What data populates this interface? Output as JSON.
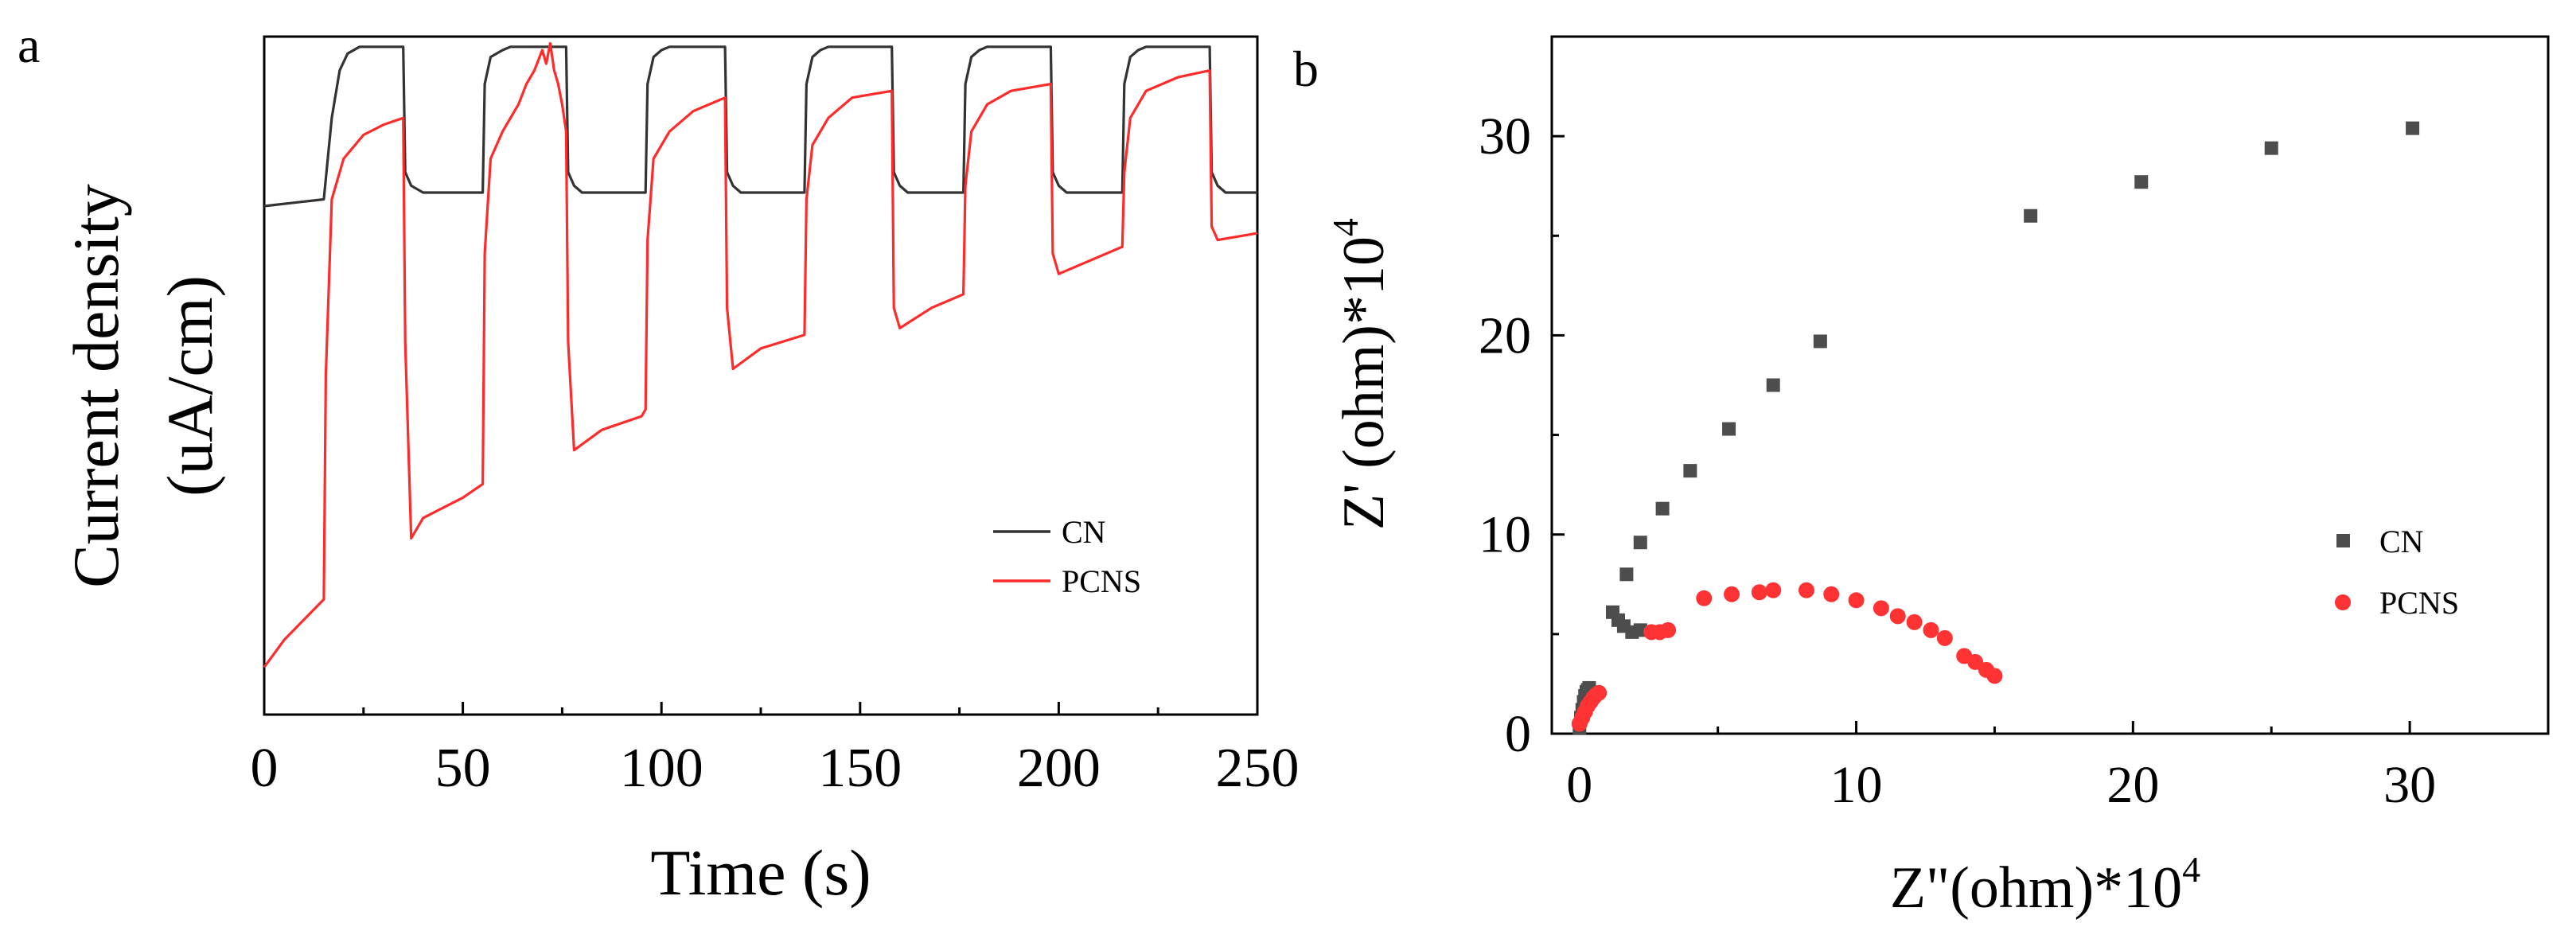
{
  "chart_data": [
    {
      "panel": "a",
      "type": "line",
      "title": "",
      "xlabel": "Time (s)",
      "ylabel": [
        "Current density",
        "(uA/cm)"
      ],
      "xlim": [
        0,
        250
      ],
      "ylim": [
        0,
        1
      ],
      "xticks": [
        0,
        50,
        100,
        150,
        200,
        250
      ],
      "xtick_labels": [
        "0",
        "50",
        "100",
        "150",
        "200",
        "250"
      ],
      "yticks_shown": false,
      "grid": false,
      "legend": {
        "position": "lower-right",
        "entries": [
          "CN",
          "PCNS"
        ]
      },
      "light_on_times": [
        15,
        55,
        96,
        136,
        176,
        216
      ],
      "light_off_times": [
        35,
        76,
        116,
        158,
        198,
        238
      ],
      "series": [
        {
          "name": "CN",
          "color": "#333333",
          "x": [
            0,
            15,
            17,
            19,
            21,
            24,
            35,
            35.5,
            37,
            40,
            55,
            55.5,
            57,
            60,
            62,
            76,
            76.5,
            78,
            80,
            96,
            96.5,
            98,
            100,
            102,
            116,
            116.5,
            118,
            120,
            136,
            136.5,
            138,
            140,
            142,
            158,
            158.5,
            160,
            162,
            176,
            176.5,
            178,
            180,
            182,
            198,
            198.5,
            200,
            202,
            216,
            216.5,
            218,
            220,
            222,
            238,
            238.5,
            240,
            242,
            250
          ],
          "y": [
            0.75,
            0.76,
            0.88,
            0.95,
            0.975,
            0.985,
            0.985,
            0.8,
            0.78,
            0.77,
            0.77,
            0.93,
            0.97,
            0.98,
            0.985,
            0.985,
            0.8,
            0.78,
            0.77,
            0.77,
            0.93,
            0.97,
            0.98,
            0.985,
            0.985,
            0.8,
            0.78,
            0.77,
            0.77,
            0.93,
            0.97,
            0.98,
            0.985,
            0.985,
            0.8,
            0.78,
            0.77,
            0.77,
            0.93,
            0.97,
            0.98,
            0.985,
            0.985,
            0.8,
            0.78,
            0.77,
            0.77,
            0.93,
            0.97,
            0.98,
            0.985,
            0.985,
            0.8,
            0.78,
            0.77,
            0.77
          ]
        },
        {
          "name": "PCNS",
          "color": "#ff2a2a",
          "x": [
            0,
            5,
            10,
            15,
            15.5,
            17,
            20,
            25,
            30,
            35,
            35.5,
            37,
            40,
            50,
            55,
            55.5,
            57,
            60,
            64,
            66,
            68,
            70,
            71,
            72,
            73,
            74,
            75,
            76,
            76.5,
            78,
            85,
            95,
            96,
            96.5,
            98,
            102,
            108,
            116,
            116.5,
            118,
            125,
            136,
            136.5,
            138,
            142,
            148,
            158,
            158.5,
            160,
            168,
            176,
            176.5,
            178,
            182,
            188,
            198,
            198.5,
            200,
            208,
            216,
            216.5,
            218,
            222,
            230,
            238,
            238.5,
            240,
            250
          ],
          "y": [
            0.07,
            0.11,
            0.14,
            0.17,
            0.5,
            0.76,
            0.82,
            0.855,
            0.87,
            0.88,
            0.55,
            0.26,
            0.29,
            0.32,
            0.34,
            0.68,
            0.82,
            0.86,
            0.9,
            0.93,
            0.95,
            0.98,
            0.96,
            0.99,
            0.95,
            0.93,
            0.9,
            0.86,
            0.55,
            0.39,
            0.42,
            0.44,
            0.45,
            0.7,
            0.82,
            0.86,
            0.89,
            0.91,
            0.6,
            0.51,
            0.54,
            0.56,
            0.76,
            0.84,
            0.88,
            0.91,
            0.92,
            0.6,
            0.57,
            0.6,
            0.62,
            0.78,
            0.86,
            0.9,
            0.92,
            0.93,
            0.68,
            0.65,
            0.67,
            0.69,
            0.8,
            0.88,
            0.92,
            0.94,
            0.95,
            0.72,
            0.7,
            0.71
          ]
        }
      ]
    },
    {
      "panel": "b",
      "type": "scatter",
      "title": "",
      "xlabel": "Z\"(ohm)*10",
      "xlabel_sup": "4",
      "ylabel": "Z' (ohm)*10",
      "ylabel_sup": "4",
      "xlim": [
        -1,
        35
      ],
      "ylim": [
        0,
        35
      ],
      "xticks": [
        0,
        10,
        20,
        30
      ],
      "xtick_labels": [
        "0",
        "10",
        "20",
        "30"
      ],
      "yticks": [
        0,
        10,
        20,
        30
      ],
      "ytick_labels": [
        "0",
        "10",
        "20",
        "30"
      ],
      "grid": false,
      "legend": {
        "position": "center-right",
        "entries": [
          "CN",
          "PCNS"
        ]
      },
      "series": [
        {
          "name": "CN",
          "marker": "square",
          "color": "#4d4d4d",
          "x": [
            0,
            0.05,
            0.1,
            0.15,
            0.2,
            0.25,
            0.3,
            0.35,
            1.2,
            1.4,
            1.6,
            1.9,
            2.2,
            1.7,
            2.2,
            3.0,
            4.0,
            5.4,
            7.0,
            8.7,
            16.3,
            20.3,
            25.0,
            30.1
          ],
          "y": [
            0.3,
            0.8,
            1.2,
            1.6,
            1.9,
            2.1,
            2.2,
            2.3,
            6.1,
            5.7,
            5.4,
            5.1,
            5.2,
            8.0,
            9.6,
            11.3,
            13.2,
            15.3,
            17.5,
            19.7,
            26.0,
            27.7,
            29.4,
            30.4
          ]
        },
        {
          "name": "PCNS",
          "marker": "circle",
          "color": "#ff3333",
          "x": [
            0,
            0.1,
            0.2,
            0.3,
            0.4,
            0.5,
            0.6,
            0.7,
            2.6,
            2.9,
            3.2,
            4.5,
            5.5,
            6.5,
            7.0,
            8.2,
            9.1,
            10.0,
            10.9,
            11.5,
            12.1,
            12.7,
            13.2,
            13.9,
            14.3,
            14.7,
            15.0
          ],
          "y": [
            0.5,
            0.8,
            1.1,
            1.4,
            1.6,
            1.8,
            1.95,
            2.05,
            5.1,
            5.1,
            5.2,
            6.8,
            7.0,
            7.1,
            7.2,
            7.2,
            7.0,
            6.7,
            6.3,
            5.9,
            5.6,
            5.2,
            4.8,
            3.9,
            3.6,
            3.2,
            2.9
          ]
        }
      ]
    }
  ],
  "panel_labels": {
    "a": "a",
    "b": "b"
  }
}
